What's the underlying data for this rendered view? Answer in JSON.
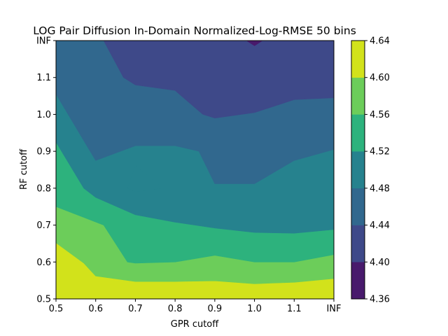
{
  "chart_data": {
    "type": "contour",
    "title": "LOG Pair Diffusion In-Domain Normalized-Log-RMSE 50 bins",
    "xlabel": "GPR cutoff",
    "ylabel": "RF cutoff",
    "x_tick_labels": [
      "0.5",
      "0.6",
      "0.7",
      "0.8",
      "0.9",
      "1.0",
      "1.1",
      "INF"
    ],
    "y_tick_labels": [
      "0.5",
      "0.6",
      "0.7",
      "0.8",
      "0.9",
      "1.0",
      "1.1",
      "INF"
    ],
    "x_range": [
      0.5,
      1.2
    ],
    "y_range": [
      0.5,
      1.2
    ],
    "colorbar": {
      "levels": [
        4.36,
        4.4,
        4.44,
        4.48,
        4.52,
        4.56,
        4.6,
        4.64
      ],
      "tick_labels": [
        "4.36",
        "4.40",
        "4.44",
        "4.48",
        "4.52",
        "4.56",
        "4.60",
        "4.64"
      ],
      "colors": [
        "#481a6c",
        "#3e4989",
        "#31688e",
        "#26828e",
        "#2db27d",
        "#6ccd5a",
        "#d2e21b"
      ]
    },
    "regions": [
      {
        "level_index": 6,
        "range": [
          4.6,
          4.64
        ],
        "points": [
          [
            0.5,
            0.5
          ],
          [
            1.2,
            0.5
          ],
          [
            1.2,
            0.555
          ],
          [
            1.1,
            0.545
          ],
          [
            1.0,
            0.541
          ],
          [
            0.9,
            0.549
          ],
          [
            0.8,
            0.547
          ],
          [
            0.7,
            0.547
          ],
          [
            0.6,
            0.562
          ],
          [
            0.57,
            0.597
          ],
          [
            0.5,
            0.652
          ]
        ]
      },
      {
        "level_index": 5,
        "range": [
          4.56,
          4.6
        ],
        "points": [
          [
            0.5,
            0.652
          ],
          [
            0.57,
            0.597
          ],
          [
            0.6,
            0.562
          ],
          [
            0.7,
            0.547
          ],
          [
            0.8,
            0.547
          ],
          [
            0.9,
            0.549
          ],
          [
            1.0,
            0.541
          ],
          [
            1.1,
            0.545
          ],
          [
            1.2,
            0.555
          ],
          [
            1.2,
            0.62
          ],
          [
            1.1,
            0.6
          ],
          [
            1.0,
            0.6
          ],
          [
            0.9,
            0.618
          ],
          [
            0.8,
            0.6
          ],
          [
            0.7,
            0.597
          ],
          [
            0.68,
            0.6
          ],
          [
            0.62,
            0.7
          ],
          [
            0.5,
            0.75
          ]
        ]
      },
      {
        "level_index": 4,
        "range": [
          4.52,
          4.56
        ],
        "points": [
          [
            0.5,
            0.75
          ],
          [
            0.62,
            0.7
          ],
          [
            0.68,
            0.6
          ],
          [
            0.7,
            0.597
          ],
          [
            0.8,
            0.6
          ],
          [
            0.9,
            0.618
          ],
          [
            1.0,
            0.6
          ],
          [
            1.1,
            0.6
          ],
          [
            1.2,
            0.62
          ],
          [
            1.2,
            0.688
          ],
          [
            1.1,
            0.678
          ],
          [
            1.0,
            0.68
          ],
          [
            0.9,
            0.692
          ],
          [
            0.8,
            0.708
          ],
          [
            0.7,
            0.728
          ],
          [
            0.6,
            0.775
          ],
          [
            0.57,
            0.8
          ],
          [
            0.5,
            0.925
          ]
        ]
      },
      {
        "level_index": 3,
        "range": [
          4.48,
          4.52
        ],
        "points": [
          [
            0.5,
            0.925
          ],
          [
            0.57,
            0.8
          ],
          [
            0.6,
            0.775
          ],
          [
            0.7,
            0.728
          ],
          [
            0.8,
            0.708
          ],
          [
            0.9,
            0.692
          ],
          [
            1.0,
            0.68
          ],
          [
            1.1,
            0.678
          ],
          [
            1.2,
            0.688
          ],
          [
            1.2,
            0.905
          ],
          [
            1.1,
            0.875
          ],
          [
            1.0,
            0.812
          ],
          [
            0.9,
            0.812
          ],
          [
            0.86,
            0.9
          ],
          [
            0.8,
            0.915
          ],
          [
            0.7,
            0.915
          ],
          [
            0.6,
            0.875
          ],
          [
            0.5,
            1.055
          ]
        ]
      },
      {
        "level_index": 2,
        "range": [
          4.44,
          4.48
        ],
        "points": [
          [
            0.5,
            1.055
          ],
          [
            0.6,
            0.875
          ],
          [
            0.7,
            0.915
          ],
          [
            0.8,
            0.915
          ],
          [
            0.86,
            0.9
          ],
          [
            0.9,
            0.812
          ],
          [
            1.0,
            0.812
          ],
          [
            1.1,
            0.875
          ],
          [
            1.2,
            0.905
          ],
          [
            1.2,
            1.045
          ],
          [
            1.1,
            1.04
          ],
          [
            1.0,
            1.005
          ],
          [
            0.9,
            0.99
          ],
          [
            0.87,
            1.0
          ],
          [
            0.8,
            1.065
          ],
          [
            0.7,
            1.08
          ],
          [
            0.67,
            1.1
          ],
          [
            0.62,
            1.2
          ],
          [
            0.5,
            1.2
          ]
        ]
      },
      {
        "level_index": 3,
        "range": [
          4.48,
          4.52
        ],
        "points": [
          [
            0.68,
            0.8
          ],
          [
            0.7,
            0.862
          ],
          [
            0.77,
            0.8
          ],
          [
            0.7,
            0.79
          ]
        ]
      },
      {
        "level_index": 1,
        "range": [
          4.4,
          4.44
        ],
        "points": [
          [
            0.62,
            1.2
          ],
          [
            0.67,
            1.1
          ],
          [
            0.7,
            1.08
          ],
          [
            0.8,
            1.065
          ],
          [
            0.87,
            1.0
          ],
          [
            0.9,
            0.99
          ],
          [
            1.0,
            1.005
          ],
          [
            1.1,
            1.04
          ],
          [
            1.2,
            1.045
          ],
          [
            1.2,
            1.2
          ]
        ]
      },
      {
        "level_index": 0,
        "range": [
          4.36,
          4.4
        ],
        "points": [
          [
            0.98,
            1.2
          ],
          [
            1.0,
            1.186
          ],
          [
            1.02,
            1.2
          ]
        ]
      }
    ]
  }
}
